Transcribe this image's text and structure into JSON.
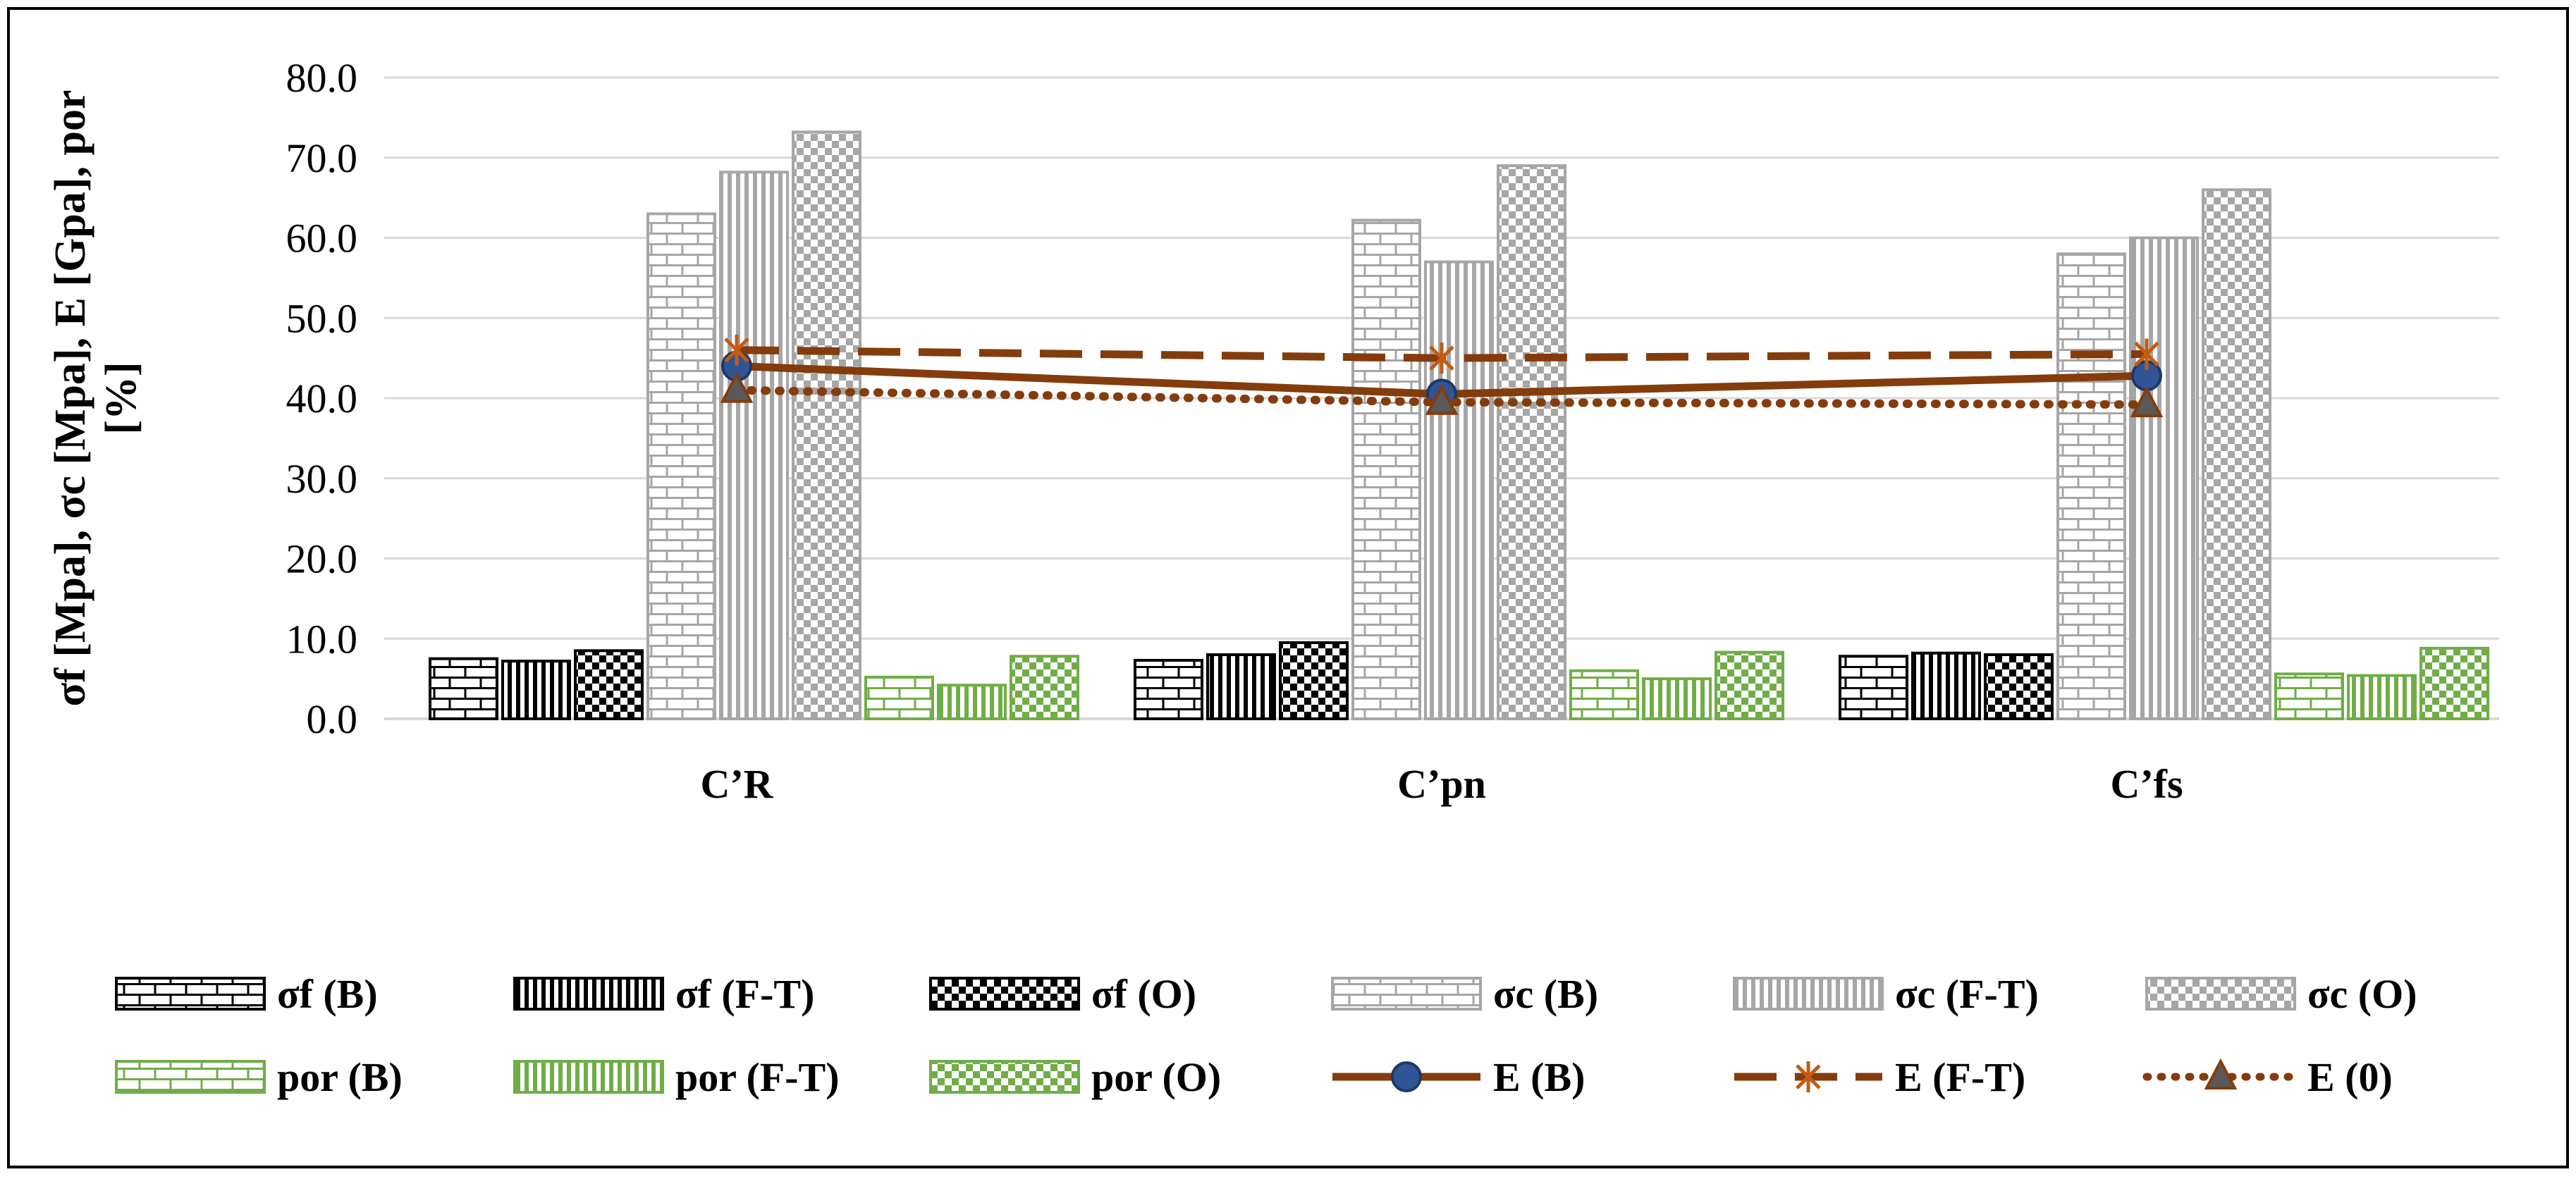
{
  "chart_data": {
    "type": "bar",
    "title": "",
    "ylabel": "σf [Mpa], σc [Mpa], E [Gpa], por [%]",
    "ylabel_lines": [
      "σf [Mpa], σc [Mpa], E [Gpa], por",
      "[%]"
    ],
    "xlabel": "",
    "ylim": [
      0,
      80
    ],
    "y_ticks": [
      "0.0",
      "10.0",
      "20.0",
      "30.0",
      "40.0",
      "50.0",
      "60.0",
      "70.0",
      "80.0"
    ],
    "grid": true,
    "legend_position": "bottom",
    "categories": [
      "C’R",
      "C’pn",
      "C’fs"
    ],
    "series": [
      {
        "name": "σf (B)",
        "kind": "bar",
        "values": [
          7.5,
          7.3,
          7.8
        ],
        "color": "#000000",
        "pattern": "brick"
      },
      {
        "name": "σf (F-T)",
        "kind": "bar",
        "values": [
          7.2,
          8.0,
          8.2
        ],
        "color": "#000000",
        "pattern": "vertical"
      },
      {
        "name": "σf (O)",
        "kind": "bar",
        "values": [
          8.5,
          9.5,
          8.0
        ],
        "color": "#000000",
        "pattern": "checker"
      },
      {
        "name": "σc (B)",
        "kind": "bar",
        "values": [
          63.0,
          62.2,
          58.0
        ],
        "color": "#a6a6a6",
        "pattern": "brick"
      },
      {
        "name": "σc (F-T)",
        "kind": "bar",
        "values": [
          68.2,
          57.0,
          60.0
        ],
        "color": "#a6a6a6",
        "pattern": "vertical"
      },
      {
        "name": "σc (O)",
        "kind": "bar",
        "values": [
          73.2,
          69.0,
          66.0
        ],
        "color": "#a6a6a6",
        "pattern": "checker"
      },
      {
        "name": "por (B)",
        "kind": "bar",
        "values": [
          5.2,
          6.0,
          5.6
        ],
        "color": "#70ad47",
        "pattern": "brick"
      },
      {
        "name": "por (F-T)",
        "kind": "bar",
        "values": [
          4.2,
          5.0,
          5.4
        ],
        "color": "#70ad47",
        "pattern": "vertical"
      },
      {
        "name": "por (O)",
        "kind": "bar",
        "values": [
          7.8,
          8.3,
          8.8
        ],
        "color": "#70ad47",
        "pattern": "checker"
      },
      {
        "name": "E (B)",
        "kind": "line",
        "values": [
          44.0,
          40.5,
          42.8
        ],
        "color": "#843c0c",
        "dash": "solid",
        "marker": "circle"
      },
      {
        "name": "E (F-T)",
        "kind": "line",
        "values": [
          46.0,
          45.0,
          45.5
        ],
        "color": "#843c0c",
        "dash": "dashed",
        "marker": "asterisk"
      },
      {
        "name": "E (0)",
        "kind": "line",
        "values": [
          41.0,
          39.5,
          39.2
        ],
        "color": "#843c0c",
        "dash": "dotted",
        "marker": "triangle"
      }
    ]
  }
}
